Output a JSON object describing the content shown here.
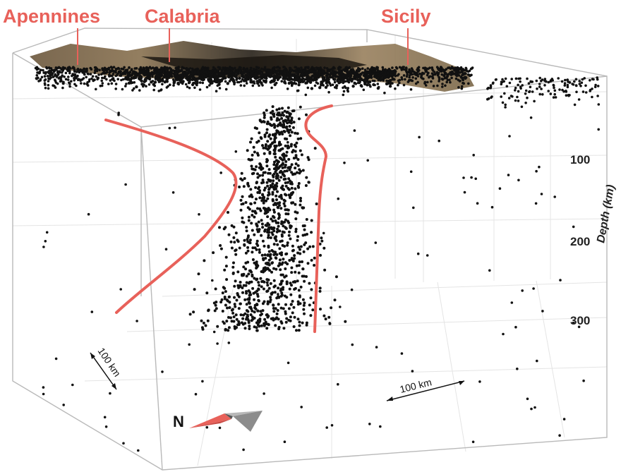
{
  "regions": {
    "apennines": "Apennines",
    "calabria": "Calabria",
    "sicily": "Sicily"
  },
  "depth_axis": {
    "title": "Depth (km)",
    "ticks": [
      "100",
      "200",
      "300"
    ]
  },
  "scale_bars": {
    "horizontal": "100 km",
    "lateral": "100 km"
  },
  "north_arrow": {
    "label": "N"
  },
  "colors": {
    "label_red": "#e8615a",
    "slab_outline": "#e8615a",
    "seismicity": "#111111",
    "topography": "#7a6248"
  }
}
